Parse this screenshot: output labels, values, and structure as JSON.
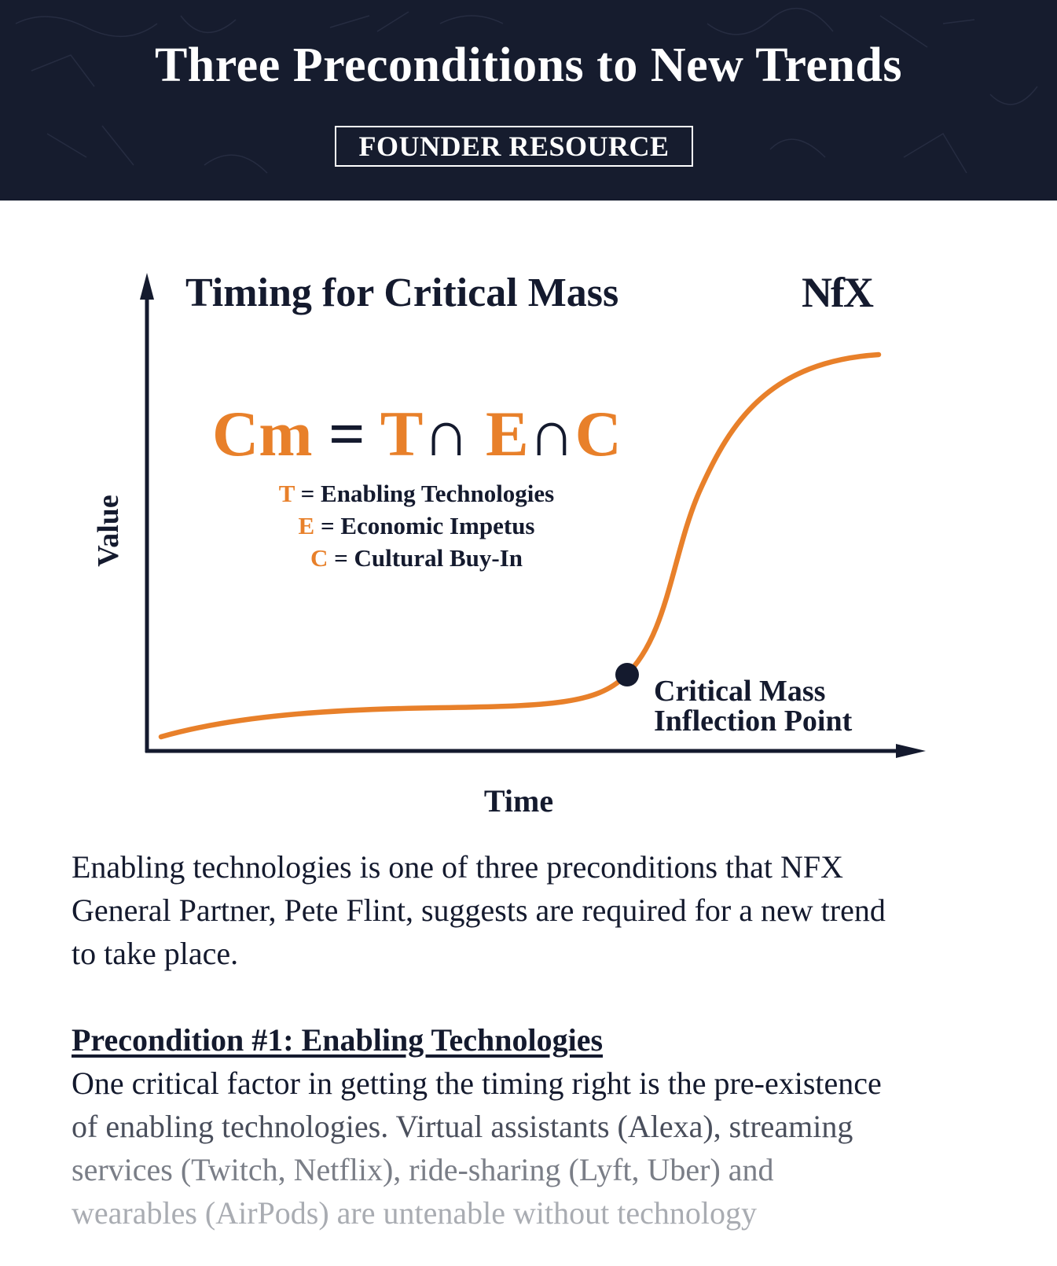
{
  "header": {
    "title": "Three Preconditions to New Trends",
    "badge": "FOUNDER RESOURCE"
  },
  "diagram": {
    "title": "Timing for Critical Mass",
    "logo": "NfX",
    "formula": {
      "lhs": "Cm",
      "equals": "=",
      "terms": [
        "T",
        "E",
        "C"
      ],
      "operator": "∩"
    },
    "legend": [
      {
        "key": "T",
        "sep": "=",
        "label": "Enabling Technologies"
      },
      {
        "key": "E",
        "sep": "=",
        "label": "Economic Impetus"
      },
      {
        "key": "C",
        "sep": "=",
        "label": "Cultural Buy-In"
      }
    ],
    "y_axis_label": "Value",
    "x_axis_label": "Time",
    "annotation": [
      "Critical Mass",
      "Inflection Point"
    ],
    "colors": {
      "accent": "#e8802a",
      "ink": "#141a2e",
      "header_bg": "#161c2e"
    }
  },
  "body": {
    "intro_lines": [
      "Enabling technologies is one of three preconditions that NFX",
      "General Partner, Pete Flint, suggests are required for a new trend",
      "to take place."
    ],
    "heading": "Precondition #1: Enabling Technologies",
    "para_lines": [
      "One critical factor in getting the timing right is the pre-existence",
      "of enabling technologies. Virtual assistants (Alexa), streaming",
      "services (Twitch, Netflix), ride-sharing (Lyft, Uber) and",
      "wearables (AirPods) are untenable without technology"
    ]
  }
}
